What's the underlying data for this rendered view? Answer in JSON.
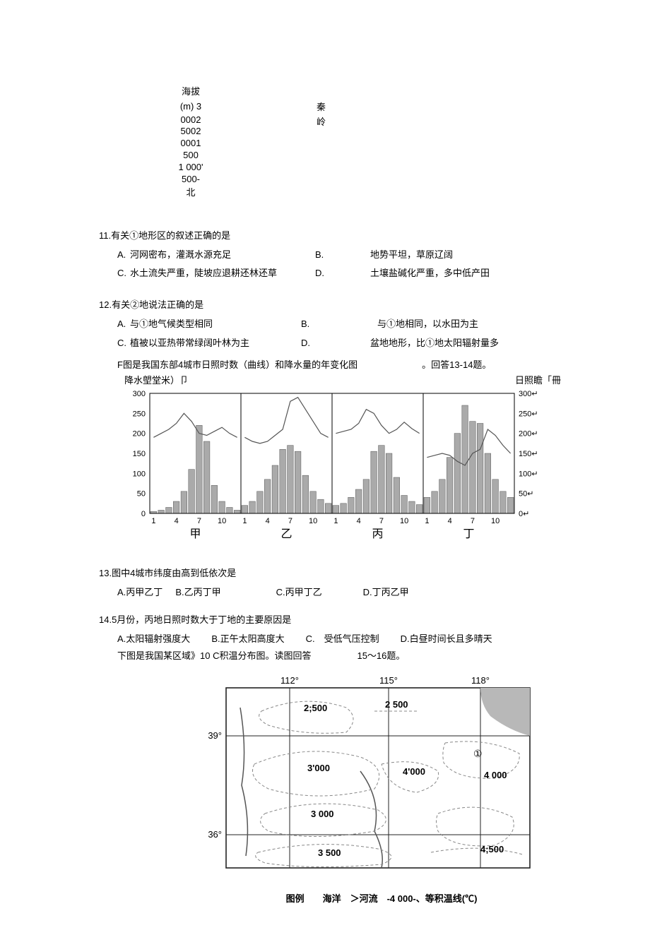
{
  "profile": {
    "title": "海拔",
    "unit": "(m) 3",
    "mountain": "秦岭",
    "scale_lines": [
      "0002",
      "5002",
      "0001",
      "500",
      "1 000'",
      "500-"
    ],
    "direction": "北"
  },
  "q11": {
    "stem": "11.有关①地形区的叙述正确的是",
    "A": "河网密布，灌溉水源充足",
    "B": "地势平坦，草原辽阔",
    "C": "水土流失严重，陡坡应退耕还林还草",
    "D": "土壤盐碱化严重，多中低产田"
  },
  "q12": {
    "stem": "12.有关②地说法正确的是",
    "A": "与①地气候类型相同",
    "B": "与①地相同，以水田为主",
    "C": "植被以亚热带常绿阔叶林为主",
    "D": "盆地地形，比①地太阳辐射量多",
    "context": "F图是我国东部4城市日照时数（曲线）和降水量的年变化图　　　　　　　。回答13-14题。"
  },
  "chart": {
    "left_label": "降水塱堂米）卩",
    "right_label": "日照瞻「冊",
    "y_left_ticks": [
      0,
      50,
      100,
      150,
      200,
      250,
      300
    ],
    "y_right_labels": [
      "0↵",
      "50↵",
      "100↵",
      "150↵",
      "200↵",
      "250↵",
      "300↵"
    ],
    "x_ticks": [
      1,
      4,
      7,
      10
    ],
    "names": [
      "甲",
      "乙",
      "丙",
      "丁"
    ],
    "colors": {
      "bar_fill": "#aaaaaa",
      "bar_stroke": "#555555",
      "line": "#555555",
      "axis": "#000000",
      "bg": "#ffffff"
    },
    "panels": [
      {
        "bars": [
          5,
          8,
          15,
          30,
          55,
          110,
          220,
          180,
          70,
          30,
          15,
          8
        ],
        "line": [
          190,
          200,
          210,
          225,
          250,
          230,
          200,
          195,
          205,
          215,
          200,
          190
        ]
      },
      {
        "bars": [
          20,
          30,
          55,
          85,
          120,
          160,
          170,
          155,
          95,
          55,
          35,
          25
        ],
        "line": [
          190,
          180,
          175,
          180,
          195,
          210,
          280,
          290,
          260,
          230,
          200,
          190
        ]
      },
      {
        "bars": [
          20,
          25,
          40,
          60,
          85,
          155,
          170,
          150,
          90,
          45,
          30,
          22
        ],
        "line": [
          200,
          205,
          210,
          225,
          260,
          250,
          220,
          200,
          210,
          228,
          212,
          200
        ]
      },
      {
        "bars": [
          40,
          55,
          85,
          140,
          200,
          270,
          230,
          225,
          150,
          85,
          55,
          40
        ],
        "line": [
          140,
          145,
          150,
          145,
          130,
          120,
          150,
          160,
          210,
          195,
          170,
          150
        ]
      }
    ]
  },
  "q13": {
    "stem": "13.图中4城市纬度由高到低依次是",
    "A": "丙甲乙丁",
    "B": "乙丙丁甲",
    "C": "丙甲丁乙",
    "D": "丁丙乙甲"
  },
  "q14": {
    "stem": "14.5月份，丙地日照时数大于丁地的主要原因是",
    "A": "太阳辐射强度大",
    "B": "正午太阳高度大",
    "C": "受低气压控制",
    "D": "白昼时间长且多晴天",
    "context": "下图是我国某区域》10 C积温分布图。读图回答　　　　　15～16题。"
  },
  "map": {
    "lons": [
      "112°",
      "115°",
      "118°"
    ],
    "lats": [
      "39°",
      "36°"
    ],
    "contours": [
      "2;500",
      "2 500",
      "3'000",
      "4'000",
      "3 000",
      "4 000",
      "3 500",
      "4;500"
    ],
    "region_label": "①",
    "legend": "图例　　海洋　＞河流　-4 000-、等积温线(℃)",
    "colors": {
      "sea": "#b8b8b8",
      "line": "#555555",
      "dash": "#888888",
      "frame": "#222222"
    }
  }
}
